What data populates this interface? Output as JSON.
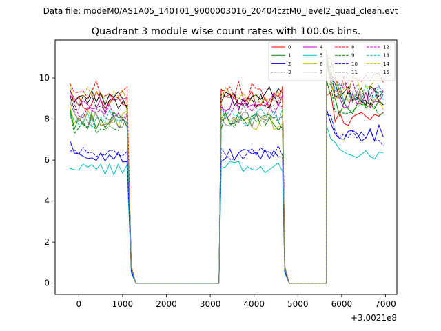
{
  "chart_data": {
    "type": "line",
    "suptitle": "Data file: modeM0/AS1A05_140T01_9000003016_20404cztM0_level2_quad_clean.evt",
    "title": "Quadrant 3 module wise count rates with 100.0s bins.",
    "xlabel": "",
    "ylabel": "",
    "x_offset_label": "+3.0021e8",
    "xlim": [
      -540,
      7260
    ],
    "ylim": [
      -0.55,
      11.85
    ],
    "xticks": [
      0,
      1000,
      2000,
      3000,
      4000,
      5000,
      6000,
      7000
    ],
    "xtick_labels": [
      "0",
      "1000",
      "2000",
      "3000",
      "4000",
      "5000",
      "6000",
      "7000"
    ],
    "yticks": [
      0,
      2,
      4,
      6,
      8,
      10
    ],
    "ytick_labels": [
      "0",
      "2",
      "4",
      "6",
      "8",
      "10"
    ],
    "legend_position": "top-right",
    "legend_columns": 4,
    "segments": [
      {
        "t_start": -200,
        "t_end": 1150,
        "active": true
      },
      {
        "t_start": 1200,
        "t_end": 3200,
        "active": false
      },
      {
        "t_start": 3250,
        "t_end": 4650,
        "active": true
      },
      {
        "t_start": 4700,
        "t_end": 5650,
        "active": false
      },
      {
        "t_start": 5650,
        "t_end": 6950,
        "active": true
      }
    ],
    "series": [
      {
        "name": "0",
        "color": "#ff0000",
        "dash": "solid",
        "levels": [
          8.9,
          9.0,
          8.0
        ]
      },
      {
        "name": "1",
        "color": "#008000",
        "dash": "solid",
        "levels": [
          7.9,
          7.9,
          8.6
        ]
      },
      {
        "name": "2",
        "color": "#0000ff",
        "dash": "solid",
        "levels": [
          6.2,
          6.2,
          7.3
        ]
      },
      {
        "name": "3",
        "color": "#000000",
        "dash": "solid",
        "levels": [
          9.0,
          9.1,
          9.2
        ]
      },
      {
        "name": "4",
        "color": "#c000c0",
        "dash": "solid",
        "levels": [
          8.6,
          8.8,
          9.0
        ]
      },
      {
        "name": "5",
        "color": "#00bfbf",
        "dash": "solid",
        "levels": [
          5.5,
          5.7,
          6.4
        ]
      },
      {
        "name": "6",
        "color": "#bfbf00",
        "dash": "solid",
        "levels": [
          8.1,
          7.9,
          8.8
        ]
      },
      {
        "name": "7",
        "color": "#808080",
        "dash": "solid",
        "levels": [
          8.0,
          8.0,
          9.0
        ]
      },
      {
        "name": "8",
        "color": "#ff0000",
        "dash": "dashed",
        "levels": [
          9.4,
          9.3,
          9.7
        ]
      },
      {
        "name": "9",
        "color": "#008000",
        "dash": "dashed",
        "levels": [
          7.7,
          7.9,
          8.5
        ]
      },
      {
        "name": "10",
        "color": "#0000ff",
        "dash": "dashed",
        "levels": [
          6.4,
          6.4,
          7.1
        ]
      },
      {
        "name": "11",
        "color": "#000000",
        "dash": "dashed",
        "levels": [
          8.7,
          8.9,
          9.1
        ]
      },
      {
        "name": "12",
        "color": "#c000c0",
        "dash": "dashed",
        "levels": [
          8.4,
          8.4,
          9.4
        ]
      },
      {
        "name": "13",
        "color": "#00bfbf",
        "dash": "dashed",
        "levels": [
          8.0,
          8.1,
          9.3
        ]
      },
      {
        "name": "14",
        "color": "#bfbf00",
        "dash": "dashed",
        "levels": [
          9.1,
          9.2,
          9.5
        ]
      },
      {
        "name": "15",
        "color": "#808080",
        "dash": "dashed",
        "levels": [
          8.2,
          8.3,
          9.3
        ]
      }
    ]
  }
}
